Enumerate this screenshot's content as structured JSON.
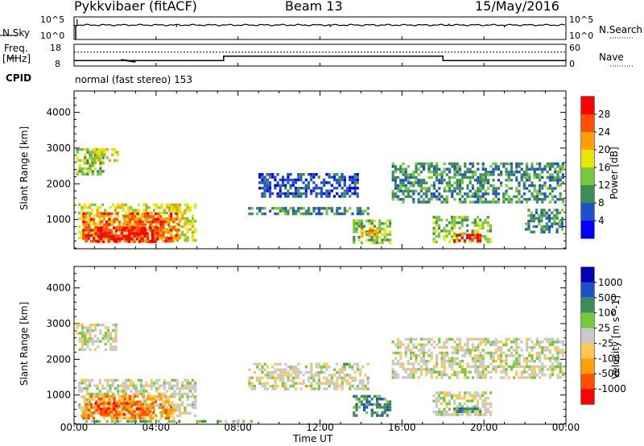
{
  "header": {
    "radar_title": "Pykkvibaer (fitACF)",
    "beam_label": "Beam 13",
    "date_label": "15/May/2016"
  },
  "noise_panel": {
    "left_label": "N.Sky",
    "right_label": "N.Search",
    "left_ticks": [
      "10^5",
      "10^0"
    ],
    "right_ticks": [
      "10^5",
      "10^0"
    ]
  },
  "freq_panel": {
    "left_label_top": "Freq.",
    "left_label_unit": "[MHz]",
    "right_label": "Nave",
    "left_ticks": [
      "18",
      "8"
    ],
    "right_ticks": [
      "60",
      "0"
    ],
    "cpid_label": "CPID",
    "cpid_text": "normal (fast stereo) 153"
  },
  "x_axis": {
    "label": "Time UT",
    "ticks": [
      "00:00",
      "04:00",
      "08:00",
      "12:00",
      "16:00",
      "20:00",
      "00:00"
    ]
  },
  "colors": {
    "power": [
      "#0000ff",
      "#1e50c8",
      "#3c8c5a",
      "#78c83c",
      "#e6e600",
      "#ffa000",
      "#ff5000",
      "#ff0000"
    ],
    "velocity": [
      "#ff0000",
      "#ff5000",
      "#ffa000",
      "#ffc850",
      "#c8c8c8",
      "#78c83c",
      "#3c8c5a",
      "#1e50c8",
      "#0000b4"
    ]
  },
  "chart_data": [
    {
      "type": "line",
      "name": "noise",
      "ylabel": "N.Sky",
      "y2label": "N.Search",
      "x_unit": "hours UT",
      "xlim": [
        0,
        24
      ],
      "noise_baseline": [
        [
          0,
          0.8
        ],
        [
          0.1,
          0.8
        ],
        [
          2,
          0.82
        ],
        [
          5,
          0.8
        ],
        [
          12,
          0.8
        ],
        [
          16,
          0.82
        ],
        [
          19,
          0.85
        ],
        [
          24,
          0.82
        ]
      ],
      "spikes": [
        [
          0.15,
          0.35
        ],
        [
          5,
          0.7
        ],
        [
          12.5,
          0.7
        ],
        [
          17.5,
          0.65
        ],
        [
          18.3,
          0.55
        ],
        [
          21,
          0.72
        ]
      ]
    },
    {
      "type": "line",
      "name": "frequency",
      "ylabel": "Freq. [MHz]",
      "y2label": "Nave",
      "ylim": [
        8,
        18
      ],
      "xlim": [
        0,
        24
      ],
      "freq_steps": [
        [
          0,
          10.5
        ],
        [
          7.3,
          10.5
        ],
        [
          7.3,
          12.5
        ],
        [
          18.0,
          12.5
        ],
        [
          18.0,
          10.5
        ],
        [
          24,
          10.5
        ]
      ],
      "nave_level": 14,
      "cpid": "normal (fast stereo) 153"
    },
    {
      "type": "heatmap",
      "name": "power",
      "ylabel": "Slant Range [km]",
      "xlabel": "Time UT",
      "colorbar_label": "Power [dB]",
      "colorbar_ticks": [
        "4",
        "8",
        "12",
        "16",
        "20",
        "24",
        "28"
      ],
      "ylim": [
        180,
        4600
      ],
      "yticks": [
        1000,
        2000,
        3000,
        4000
      ],
      "xlim": [
        0,
        24
      ],
      "echo_regions": [
        {
          "t": [
            0.2,
            6.0
          ],
          "r": [
            300,
            1450
          ],
          "level": 4
        },
        {
          "t": [
            0.4,
            5.2
          ],
          "r": [
            300,
            1200
          ],
          "level": 6
        },
        {
          "t": [
            1.0,
            4.2
          ],
          "r": [
            330,
            800
          ],
          "level": 7
        },
        {
          "t": [
            0.1,
            1.5
          ],
          "r": [
            2200,
            3000
          ],
          "level": 3
        },
        {
          "t": [
            0.8,
            2.2
          ],
          "r": [
            2600,
            3000
          ],
          "level": 4
        },
        {
          "t": [
            8.5,
            14.5
          ],
          "r": [
            1100,
            1350
          ],
          "level": 2
        },
        {
          "t": [
            9.0,
            14.0
          ],
          "r": [
            1550,
            2300
          ],
          "level": 1
        },
        {
          "t": [
            13.6,
            15.5
          ],
          "r": [
            300,
            1000
          ],
          "level": 3
        },
        {
          "t": [
            14.0,
            15.0
          ],
          "r": [
            450,
            800
          ],
          "level": 5
        },
        {
          "t": [
            15.5,
            24.0
          ],
          "r": [
            1400,
            2600
          ],
          "level": 2
        },
        {
          "t": [
            17.5,
            20.5
          ],
          "r": [
            300,
            1100
          ],
          "level": 3
        },
        {
          "t": [
            18.5,
            20.0
          ],
          "r": [
            330,
            600
          ],
          "level": 7
        },
        {
          "t": [
            22.0,
            24.0
          ],
          "r": [
            600,
            1300
          ],
          "level": 2
        }
      ]
    },
    {
      "type": "heatmap",
      "name": "velocity",
      "ylabel": "Slant Range [km]",
      "xlabel": "Time UT",
      "colorbar_label": "Velocity [m s^-1]",
      "colorbar_ticks": [
        "-1000",
        "-500",
        "-100",
        "-25",
        "25",
        "100",
        "500",
        "1000"
      ],
      "ylim": [
        180,
        4600
      ],
      "yticks": [
        1000,
        2000,
        3000,
        4000
      ],
      "xlim": [
        0,
        24
      ],
      "echo_regions": [
        {
          "t": [
            0.2,
            6.0
          ],
          "r": [
            300,
            1450
          ],
          "level": 4
        },
        {
          "t": [
            0.4,
            5.0
          ],
          "r": [
            300,
            1000
          ],
          "level": 2
        },
        {
          "t": [
            1.0,
            4.0
          ],
          "r": [
            350,
            800
          ],
          "level": 1
        },
        {
          "t": [
            0.1,
            2.2
          ],
          "r": [
            2200,
            3000
          ],
          "level": 4
        },
        {
          "t": [
            8.5,
            14.5
          ],
          "r": [
            1100,
            1900
          ],
          "level": 4
        },
        {
          "t": [
            13.0,
            14.0
          ],
          "r": [
            1700,
            1900
          ],
          "level": 5
        },
        {
          "t": [
            13.6,
            15.5
          ],
          "r": [
            350,
            1000
          ],
          "level": 6
        },
        {
          "t": [
            15.5,
            24.0
          ],
          "r": [
            1400,
            2600
          ],
          "level": 4
        },
        {
          "t": [
            17.5,
            20.5
          ],
          "r": [
            350,
            1100
          ],
          "level": 4
        },
        {
          "t": [
            18.5,
            20.0
          ],
          "r": [
            450,
            650
          ],
          "level": 6
        },
        {
          "t": [
            0.3,
            9.0
          ],
          "r": [
            200,
            300
          ],
          "level": 5
        }
      ]
    }
  ]
}
